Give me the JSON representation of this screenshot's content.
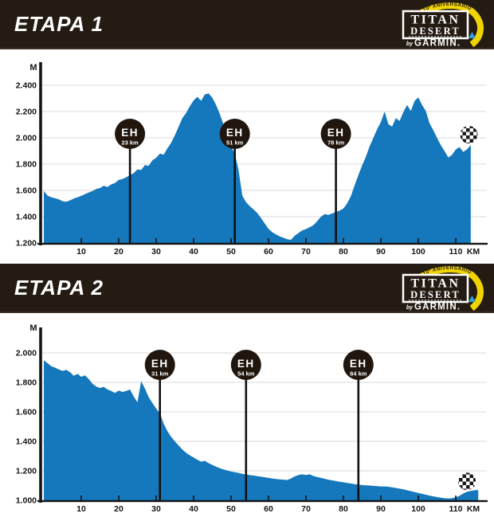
{
  "logo": {
    "ribbon": "10º ANIVERSARIO",
    "line1": "TITAN",
    "line2": "DESERT",
    "by": "by",
    "brand": "GARMIN."
  },
  "colors": {
    "area_blue": "#1577BC",
    "header_bg": "#241B13",
    "marker_bg": "#20160E",
    "ribbon_yellow": "#F0D400",
    "garmin_blue": "#2F9FD8",
    "gridline": "#D8D8D8",
    "axis": "#141414",
    "text_on_dark": "#FFFFFF"
  },
  "chart_data": [
    {
      "type": "area",
      "title": "ETAPA 1",
      "ylabel": "M",
      "xlabel": "KM",
      "xlim": [
        0,
        118
      ],
      "ylim": [
        1200,
        2460
      ],
      "grid": true,
      "legend": false,
      "x_ticks": [
        10,
        20,
        30,
        40,
        50,
        60,
        70,
        80,
        90,
        100,
        110
      ],
      "y_ticks": [
        1200,
        1400,
        1600,
        1800,
        2000,
        2200,
        2400
      ],
      "y_tick_labels": [
        "1.200",
        "1.400",
        "1.600",
        "1.800",
        "2.000",
        "2.200",
        "2.400"
      ],
      "eh_markers": [
        {
          "label": "EH",
          "km": 23,
          "km_label": "23 km"
        },
        {
          "label": "EH",
          "km": 51,
          "km_label": "51 km"
        },
        {
          "label": "EH",
          "km": 78,
          "km_label": "78 km"
        }
      ],
      "finish_flag_km": 113.5,
      "x_km": [
        0,
        1,
        2,
        3,
        4,
        5,
        6,
        7,
        8,
        9,
        10,
        11,
        12,
        13,
        14,
        15,
        16,
        17,
        18,
        19,
        20,
        21,
        22,
        23,
        24,
        25,
        26,
        27,
        28,
        29,
        30,
        31,
        32,
        33,
        34,
        35,
        36,
        37,
        38,
        39,
        40,
        41,
        42,
        43,
        44,
        45,
        46,
        47,
        48,
        49,
        50,
        51,
        52,
        53,
        54,
        55,
        56,
        57,
        58,
        59,
        60,
        61,
        62,
        63,
        64,
        65,
        66,
        67,
        68,
        69,
        70,
        71,
        72,
        73,
        74,
        75,
        76,
        77,
        78,
        79,
        80,
        81,
        82,
        83,
        84,
        85,
        86,
        87,
        88,
        89,
        90,
        91,
        92,
        93,
        94,
        95,
        96,
        97,
        98,
        99,
        100,
        101,
        102,
        103,
        104,
        105,
        106,
        107,
        108,
        109,
        110,
        111,
        112,
        113,
        114
      ],
      "elevation_m": [
        1595,
        1560,
        1548,
        1540,
        1532,
        1518,
        1514,
        1524,
        1538,
        1548,
        1558,
        1572,
        1584,
        1596,
        1610,
        1618,
        1636,
        1626,
        1646,
        1656,
        1680,
        1686,
        1700,
        1715,
        1732,
        1760,
        1755,
        1792,
        1786,
        1830,
        1848,
        1880,
        1872,
        1920,
        1962,
        2020,
        2085,
        2150,
        2190,
        2240,
        2285,
        2312,
        2282,
        2330,
        2338,
        2305,
        2250,
        2180,
        2100,
        2010,
        1935,
        1880,
        1755,
        1560,
        1510,
        1480,
        1455,
        1428,
        1390,
        1348,
        1308,
        1282,
        1265,
        1250,
        1240,
        1228,
        1224,
        1255,
        1276,
        1295,
        1306,
        1320,
        1336,
        1366,
        1400,
        1420,
        1414,
        1424,
        1436,
        1446,
        1462,
        1502,
        1556,
        1640,
        1716,
        1790,
        1856,
        1936,
        2000,
        2066,
        2120,
        2200,
        2105,
        2085,
        2150,
        2128,
        2195,
        2250,
        2205,
        2280,
        2308,
        2250,
        2205,
        2110,
        2058,
        2000,
        1945,
        1900,
        1850,
        1870,
        1910,
        1930,
        1893,
        1912,
        1945
      ]
    },
    {
      "type": "area",
      "title": "ETAPA 2",
      "ylabel": "M",
      "xlabel": "KM",
      "xlim": [
        0,
        119
      ],
      "ylim": [
        1000,
        2080
      ],
      "grid": true,
      "legend": false,
      "x_ticks": [
        10,
        20,
        30,
        40,
        50,
        60,
        70,
        80,
        90,
        100,
        110
      ],
      "y_ticks": [
        1000,
        1200,
        1400,
        1600,
        1800,
        2000
      ],
      "y_tick_labels": [
        "1.000",
        "1.200",
        "1.400",
        "1.600",
        "1.800",
        "2.000"
      ],
      "eh_markers": [
        {
          "label": "EH",
          "km": 31,
          "km_label": "31 km"
        },
        {
          "label": "EH",
          "km": 54,
          "km_label": "54 km"
        },
        {
          "label": "EH",
          "km": 84,
          "km_label": "84 km"
        }
      ],
      "finish_flag_km": 113,
      "x_km": [
        0,
        1,
        2,
        3,
        4,
        5,
        6,
        7,
        8,
        9,
        10,
        11,
        12,
        13,
        14,
        15,
        16,
        17,
        18,
        19,
        20,
        21,
        22,
        23,
        24,
        25,
        26,
        27,
        28,
        29,
        30,
        31,
        32,
        33,
        34,
        35,
        36,
        37,
        38,
        39,
        40,
        41,
        42,
        43,
        44,
        45,
        46,
        47,
        48,
        49,
        50,
        51,
        52,
        53,
        54,
        55,
        56,
        57,
        58,
        59,
        60,
        61,
        62,
        63,
        64,
        65,
        66,
        67,
        68,
        69,
        70,
        71,
        72,
        73,
        74,
        75,
        76,
        77,
        78,
        79,
        80,
        81,
        82,
        83,
        84,
        85,
        86,
        87,
        88,
        89,
        90,
        91,
        92,
        93,
        94,
        95,
        96,
        97,
        98,
        99,
        100,
        101,
        102,
        103,
        104,
        105,
        106,
        107,
        108,
        109,
        110,
        111,
        112,
        113,
        114,
        115,
        116
      ],
      "elevation_m": [
        1950,
        1930,
        1910,
        1900,
        1888,
        1878,
        1885,
        1870,
        1845,
        1858,
        1838,
        1848,
        1822,
        1790,
        1772,
        1762,
        1770,
        1752,
        1742,
        1728,
        1745,
        1735,
        1742,
        1752,
        1705,
        1665,
        1808,
        1758,
        1700,
        1660,
        1622,
        1590,
        1520,
        1470,
        1430,
        1400,
        1372,
        1345,
        1322,
        1305,
        1290,
        1275,
        1262,
        1268,
        1252,
        1240,
        1228,
        1218,
        1210,
        1202,
        1195,
        1190,
        1186,
        1180,
        1175,
        1171,
        1168,
        1164,
        1160,
        1156,
        1152,
        1148,
        1145,
        1142,
        1140,
        1138,
        1148,
        1162,
        1172,
        1176,
        1172,
        1176,
        1165,
        1158,
        1152,
        1146,
        1140,
        1135,
        1130,
        1126,
        1122,
        1118,
        1114,
        1110,
        1106,
        1103,
        1101,
        1100,
        1098,
        1096,
        1094,
        1094,
        1092,
        1088,
        1084,
        1079,
        1074,
        1068,
        1062,
        1056,
        1050,
        1044,
        1038,
        1032,
        1027,
        1022,
        1018,
        1014,
        1012,
        1014,
        1020,
        1030,
        1046,
        1058,
        1064,
        1068,
        1070
      ]
    }
  ]
}
